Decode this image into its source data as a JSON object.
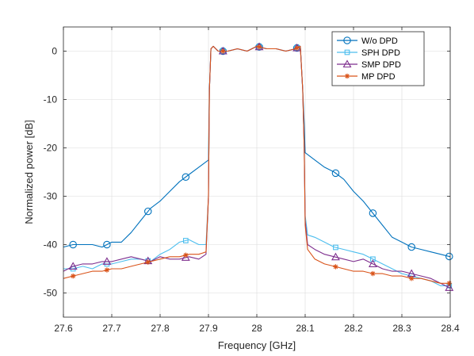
{
  "chart_data": {
    "type": "line",
    "title": "",
    "xlabel": "Frequency [GHz]",
    "ylabel": "Normalized power [dB]",
    "xlim": [
      27.6,
      28.4
    ],
    "ylim": [
      -55,
      5
    ],
    "xticks": [
      "27.6",
      "27.7",
      "27.8",
      "27.9",
      "28",
      "28.1",
      "28.2",
      "28.3",
      "28.4"
    ],
    "yticks": [
      "0",
      "-10",
      "-20",
      "-30",
      "-40",
      "-50"
    ],
    "grid": true,
    "legend_position": "top-right",
    "series": [
      {
        "name": "W/o DPD",
        "color": "#0072BD",
        "marker": "circle",
        "x": [
          27.6,
          27.62,
          27.64,
          27.66,
          27.68,
          27.7,
          27.72,
          27.74,
          27.76,
          27.78,
          27.8,
          27.82,
          27.84,
          27.86,
          27.88,
          27.9,
          27.902,
          27.905,
          27.91,
          27.92,
          27.94,
          27.96,
          27.98,
          28.0,
          28.02,
          28.04,
          28.06,
          28.08,
          28.09,
          28.095,
          28.098,
          28.1,
          28.12,
          28.14,
          28.16,
          28.18,
          28.2,
          28.22,
          28.24,
          28.26,
          28.28,
          28.3,
          28.32,
          28.34,
          28.36,
          28.38,
          28.4
        ],
        "y": [
          -40.5,
          -40,
          -40,
          -40,
          -40.5,
          -39.5,
          -39.5,
          -37.5,
          -35,
          -32.5,
          -31,
          -29,
          -27,
          -25.5,
          -24,
          -22.5,
          -8,
          0.5,
          1,
          0,
          0,
          0.5,
          0,
          1,
          0.5,
          0.5,
          0,
          0.5,
          1,
          -8,
          -15,
          -21,
          -22.5,
          -24,
          -25,
          -26.5,
          -29,
          -31,
          -33.5,
          -36,
          -38.5,
          -39.5,
          -40.5,
          -41,
          -41.5,
          -42,
          -42.5
        ],
        "marker_x": [
          27.62,
          27.69,
          27.775,
          27.853,
          27.93,
          28.005,
          28.083,
          28.163,
          28.24,
          28.32,
          28.398
        ]
      },
      {
        "name": "SPH DPD",
        "color": "#4DBEEE",
        "marker": "square",
        "x": [
          27.6,
          27.62,
          27.64,
          27.66,
          27.68,
          27.7,
          27.72,
          27.74,
          27.76,
          27.78,
          27.8,
          27.82,
          27.84,
          27.86,
          27.88,
          27.895,
          27.9,
          27.902,
          27.905,
          27.91,
          27.92,
          27.94,
          27.96,
          27.98,
          28.0,
          28.02,
          28.04,
          28.06,
          28.08,
          28.09,
          28.095,
          28.098,
          28.1,
          28.105,
          28.12,
          28.14,
          28.16,
          28.18,
          28.2,
          28.22,
          28.24,
          28.26,
          28.28,
          28.3,
          28.32,
          28.34,
          28.36,
          28.38,
          28.4
        ],
        "y": [
          -45,
          -45,
          -44.5,
          -45,
          -44,
          -44,
          -43.5,
          -43,
          -43,
          -43.5,
          -42,
          -41,
          -39.5,
          -39,
          -40,
          -40,
          -30,
          -8,
          0.5,
          1,
          0,
          0,
          0.5,
          0,
          1,
          0.5,
          0.5,
          0,
          0.5,
          1,
          -8,
          -20,
          -34,
          -38,
          -38.5,
          -39.5,
          -40.5,
          -41,
          -41.5,
          -42,
          -43,
          -44,
          -45,
          -46,
          -46.5,
          -47,
          -47.5,
          -48.5,
          -48.5
        ],
        "marker_x": [
          27.62,
          27.69,
          27.775,
          27.853,
          27.93,
          28.005,
          28.083,
          28.163,
          28.24,
          28.32,
          28.398
        ]
      },
      {
        "name": "SMP DPD",
        "color": "#7E2F8E",
        "marker": "triangle",
        "x": [
          27.6,
          27.62,
          27.64,
          27.66,
          27.68,
          27.7,
          27.72,
          27.74,
          27.76,
          27.78,
          27.8,
          27.82,
          27.84,
          27.86,
          27.88,
          27.895,
          27.9,
          27.902,
          27.905,
          27.91,
          27.92,
          27.94,
          27.96,
          27.98,
          28.0,
          28.02,
          28.04,
          28.06,
          28.08,
          28.09,
          28.095,
          28.098,
          28.1,
          28.105,
          28.12,
          28.14,
          28.16,
          28.18,
          28.2,
          28.22,
          28.24,
          28.26,
          28.28,
          28.3,
          28.32,
          28.34,
          28.36,
          28.38,
          28.4
        ],
        "y": [
          -45.5,
          -44.5,
          -44,
          -44,
          -43.5,
          -43.5,
          -43,
          -42.5,
          -43,
          -43.5,
          -42.5,
          -43,
          -43,
          -42.5,
          -43,
          -42,
          -30,
          -8,
          0.5,
          1,
          0,
          0,
          0.5,
          0,
          1,
          0.5,
          0.5,
          0,
          0.5,
          1,
          -8,
          -20,
          -35,
          -40,
          -41,
          -42,
          -42.5,
          -43,
          -43.5,
          -43,
          -44,
          -45,
          -45.5,
          -45.5,
          -46,
          -46.5,
          -47,
          -48,
          -49
        ],
        "marker_x": [
          27.62,
          27.69,
          27.775,
          27.853,
          27.93,
          28.005,
          28.083,
          28.163,
          28.24,
          28.32,
          28.398
        ]
      },
      {
        "name": "MP DPD",
        "color": "#D95319",
        "marker": "asterisk",
        "x": [
          27.6,
          27.62,
          27.64,
          27.66,
          27.68,
          27.7,
          27.72,
          27.74,
          27.76,
          27.78,
          27.8,
          27.82,
          27.84,
          27.86,
          27.88,
          27.895,
          27.9,
          27.902,
          27.905,
          27.91,
          27.92,
          27.94,
          27.96,
          27.98,
          28.0,
          28.02,
          28.04,
          28.06,
          28.08,
          28.09,
          28.095,
          28.098,
          28.1,
          28.105,
          28.12,
          28.14,
          28.16,
          28.18,
          28.2,
          28.22,
          28.24,
          28.26,
          28.28,
          28.3,
          28.32,
          28.34,
          28.36,
          28.38,
          28.4
        ],
        "y": [
          -47,
          -46.5,
          -46,
          -45.5,
          -45.5,
          -45,
          -45,
          -44.5,
          -44,
          -43.5,
          -43,
          -42.5,
          -42.5,
          -42,
          -42,
          -41.5,
          -30,
          -8,
          0.5,
          1,
          0,
          0,
          0.5,
          0,
          1,
          0.5,
          0.5,
          0,
          0.5,
          1,
          -8,
          -20,
          -36,
          -41,
          -43,
          -44,
          -44.5,
          -45,
          -45.5,
          -45.5,
          -46,
          -46,
          -46.5,
          -46.5,
          -47,
          -47,
          -47.5,
          -48,
          -48
        ],
        "marker_x": [
          27.62,
          27.69,
          27.775,
          27.853,
          27.93,
          28.005,
          28.083,
          28.163,
          28.24,
          28.32,
          28.398
        ]
      }
    ]
  }
}
